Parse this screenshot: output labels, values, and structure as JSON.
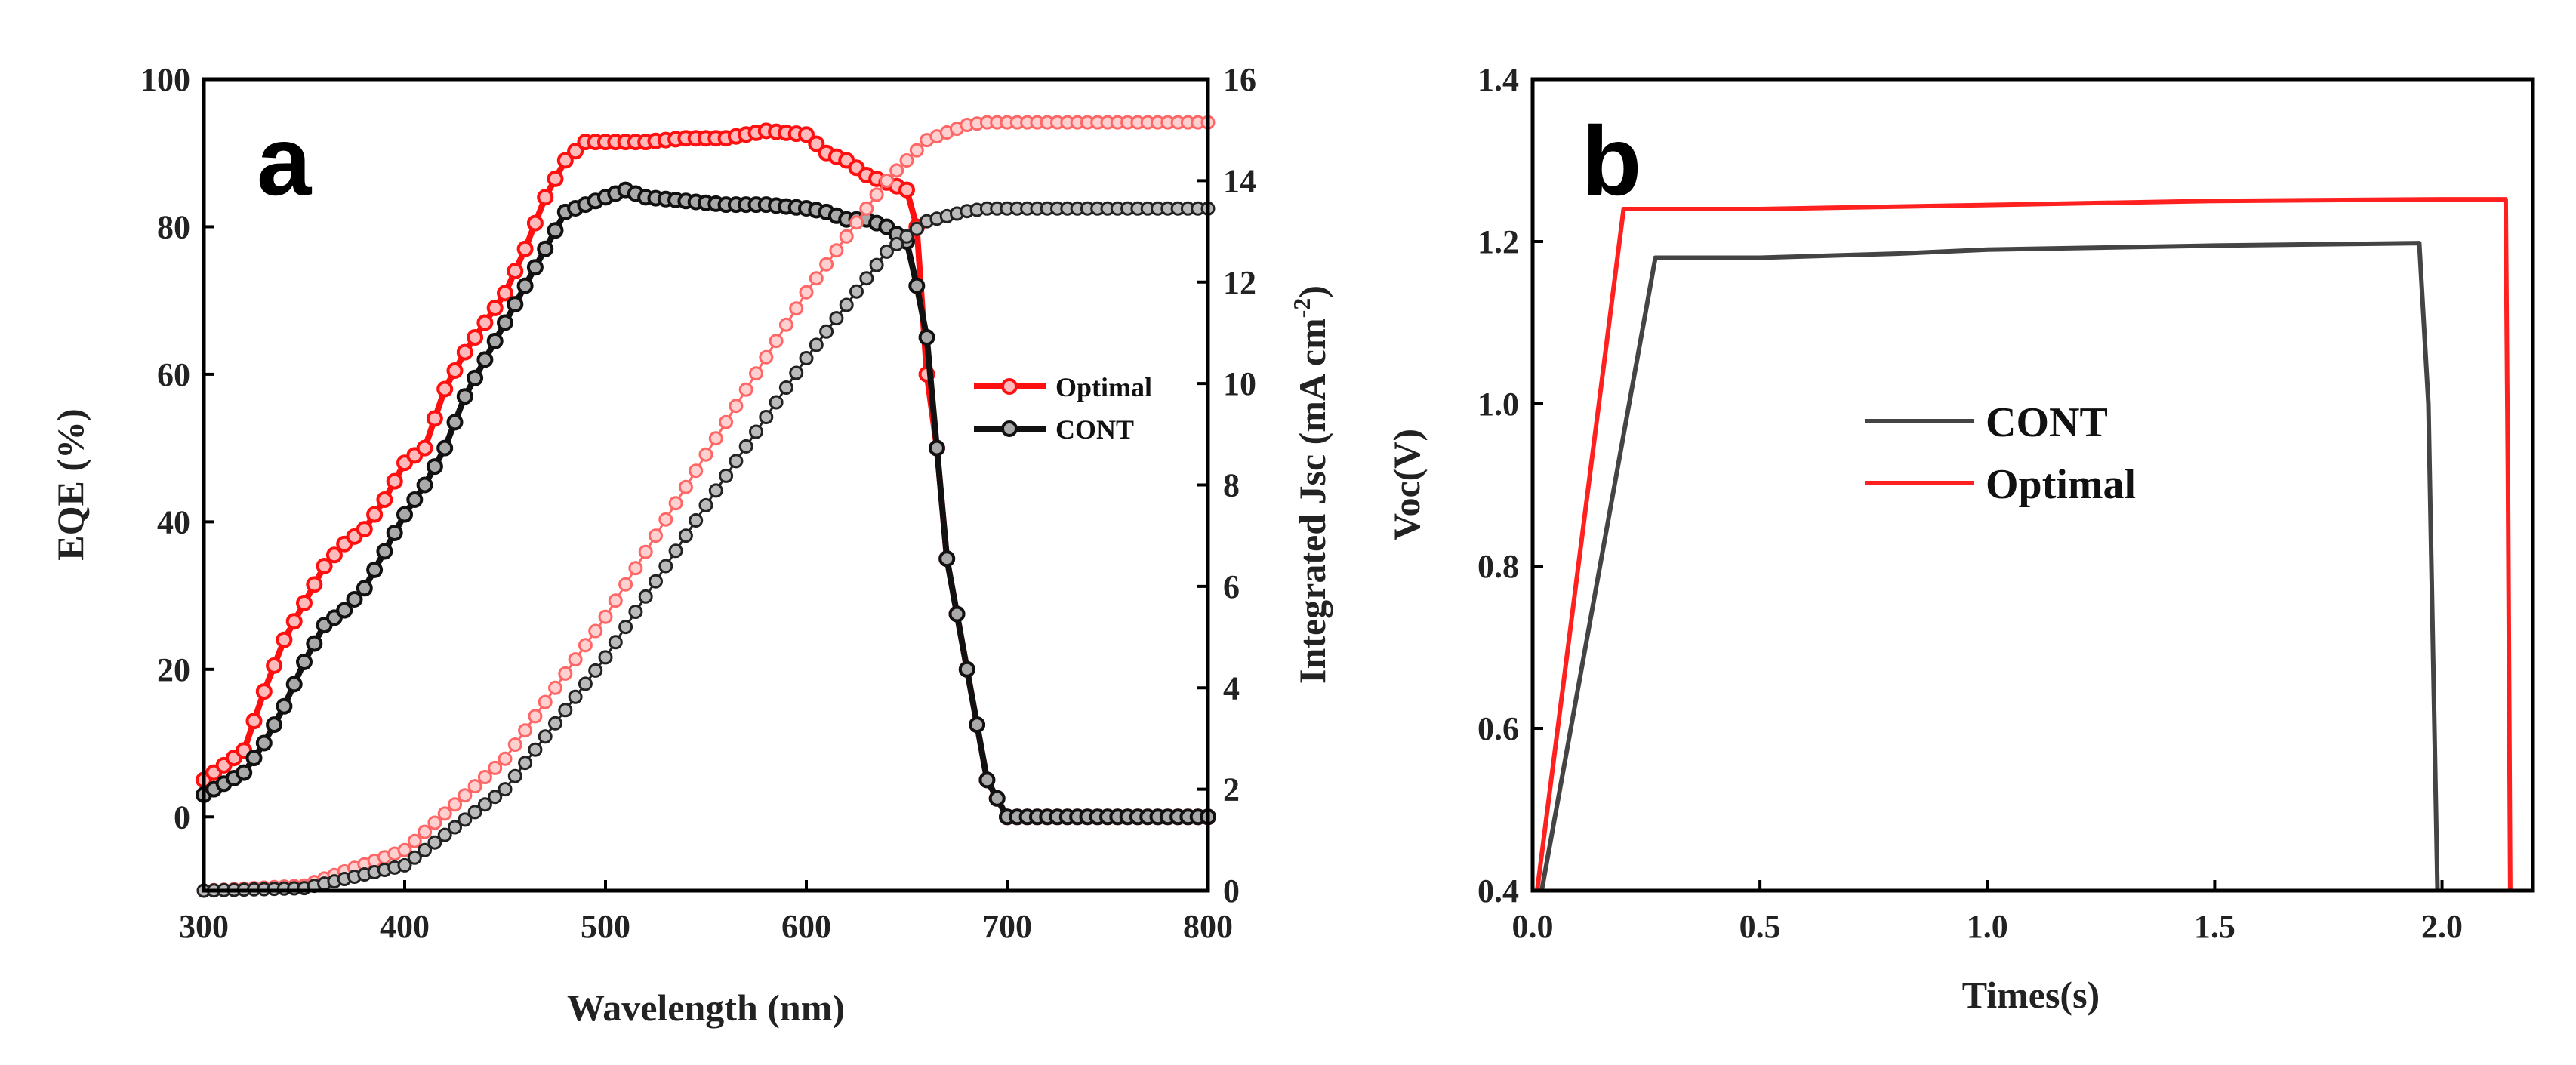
{
  "chart_data": [
    {
      "type": "line",
      "panel_label": "a",
      "xlabel": "Wavelength (nm)",
      "ylabel": "EQE (%)",
      "ylabel_right": "Integrated Jsc (mA cm",
      "ylabel_right_sup": "-2",
      "ylabel_right_close": ")",
      "xlim": [
        300,
        800
      ],
      "ylim": [
        -10,
        100
      ],
      "ylim_right": [
        0,
        16
      ],
      "x_ticks": [
        "300",
        "400",
        "500",
        "600",
        "700",
        "800"
      ],
      "y_ticks": [
        "0",
        "20",
        "40",
        "60",
        "80",
        "100"
      ],
      "y_ticks_right": [
        "0",
        "2",
        "4",
        "6",
        "8",
        "10",
        "12",
        "14",
        "16"
      ],
      "legend": {
        "position": "center-right",
        "entries": [
          "Optimal",
          "CONT"
        ]
      },
      "series": [
        {
          "name": "Optimal",
          "axis": "left",
          "color": "#ff1010",
          "x": [
            300,
            320,
            330,
            340,
            350,
            360,
            370,
            380,
            390,
            400,
            410,
            420,
            430,
            440,
            450,
            460,
            470,
            480,
            490,
            500,
            520,
            540,
            560,
            580,
            600,
            610,
            620,
            630,
            640,
            650,
            655,
            660,
            665,
            670,
            680,
            690,
            700,
            720,
            750,
            800
          ],
          "y": [
            5,
            9,
            17,
            24,
            29,
            34,
            37,
            39,
            43,
            48,
            50,
            58,
            63,
            67,
            71,
            77,
            84,
            89,
            91.5,
            91.5,
            91.5,
            92,
            92,
            93,
            92.5,
            90,
            89,
            87,
            86,
            85,
            80,
            60,
            50,
            35,
            20,
            5,
            0,
            0,
            0,
            0
          ]
        },
        {
          "name": "CONT",
          "axis": "left",
          "color": "#111111",
          "x": [
            300,
            320,
            330,
            340,
            350,
            360,
            370,
            380,
            390,
            400,
            410,
            420,
            430,
            440,
            450,
            460,
            470,
            480,
            490,
            500,
            510,
            520,
            540,
            560,
            580,
            600,
            610,
            620,
            630,
            640,
            650,
            655,
            660,
            665,
            670,
            680,
            690,
            700,
            720,
            750,
            800
          ],
          "y": [
            3,
            6,
            10,
            15,
            21,
            26,
            28,
            31,
            36,
            41,
            45,
            50,
            57,
            62,
            67,
            72,
            77,
            82,
            83,
            84,
            85,
            84,
            83.5,
            83,
            83,
            82.5,
            82,
            81,
            81,
            80,
            78,
            72,
            65,
            50,
            35,
            20,
            5,
            0,
            0,
            0,
            0
          ]
        },
        {
          "name": "Optimal Jsc",
          "axis": "right",
          "color": "#ff6666",
          "x": [
            300,
            350,
            400,
            450,
            500,
            550,
            600,
            640,
            660,
            680,
            690,
            700,
            750,
            800
          ],
          "y": [
            0,
            0.1,
            0.8,
            2.6,
            5.4,
            8.6,
            11.8,
            14.0,
            14.8,
            15.1,
            15.15,
            15.15,
            15.15,
            15.15
          ]
        },
        {
          "name": "CONT Jsc",
          "axis": "right",
          "color": "#222222",
          "x": [
            300,
            350,
            400,
            450,
            500,
            550,
            600,
            640,
            660,
            680,
            690,
            700,
            750,
            800
          ],
          "y": [
            0,
            0.05,
            0.5,
            2.0,
            4.6,
            7.6,
            10.5,
            12.6,
            13.2,
            13.4,
            13.45,
            13.45,
            13.45,
            13.45
          ]
        }
      ]
    },
    {
      "type": "line",
      "panel_label": "b",
      "xlabel": "Times(s)",
      "ylabel": "Voc(V)",
      "xlim": [
        0.0,
        2.2
      ],
      "ylim": [
        0.4,
        1.4
      ],
      "x_ticks": [
        "0.0",
        "0.5",
        "1.0",
        "1.5",
        "2.0"
      ],
      "y_ticks": [
        "0.4",
        "0.6",
        "0.8",
        "1.0",
        "1.2",
        "1.4"
      ],
      "legend": {
        "position": "center",
        "entries": [
          "CONT",
          "Optimal"
        ]
      },
      "series": [
        {
          "name": "CONT",
          "color": "#444444",
          "x": [
            0.02,
            0.27,
            0.5,
            0.8,
            1.0,
            1.5,
            1.95,
            1.97,
            1.99
          ],
          "y": [
            0.4,
            1.18,
            1.18,
            1.185,
            1.19,
            1.195,
            1.198,
            1.0,
            0.4
          ]
        },
        {
          "name": "Optimal",
          "color": "#ff2020",
          "x": [
            0.01,
            0.2,
            0.5,
            1.0,
            1.5,
            2.0,
            2.14,
            2.145,
            2.15
          ],
          "y": [
            0.4,
            1.24,
            1.24,
            1.245,
            1.25,
            1.252,
            1.252,
            0.9,
            0.4
          ]
        }
      ]
    }
  ]
}
